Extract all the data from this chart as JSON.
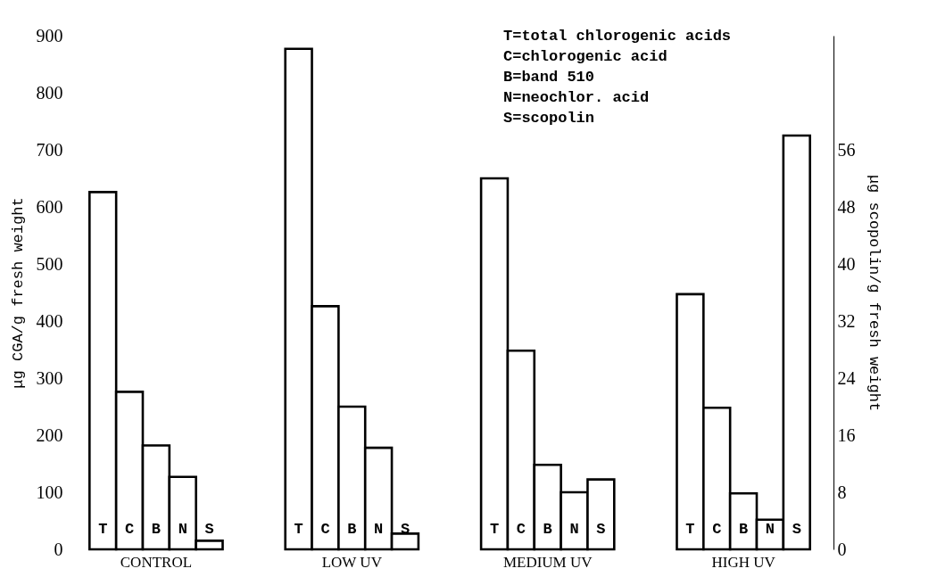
{
  "chart_data": {
    "type": "bar",
    "categories": [
      "CONTROL",
      "LOW UV",
      "MEDIUM UV",
      "HIGH UV"
    ],
    "series": [
      {
        "name": "T",
        "color": "#ffffff",
        "values": [
          626,
          877,
          650,
          447
        ]
      },
      {
        "name": "C",
        "color": "#ffffff",
        "values": [
          276,
          426,
          348,
          248
        ]
      },
      {
        "name": "B",
        "color": "#ffffff",
        "values": [
          182,
          250,
          148,
          98
        ]
      },
      {
        "name": "N",
        "color": "#ffffff",
        "values": [
          127,
          178,
          100,
          52
        ]
      },
      {
        "name": "S",
        "color": "#ffffff",
        "axis": "y2",
        "values": [
          1.2,
          2.2,
          9.8,
          58
        ]
      }
    ],
    "ylabel": "μg CGA/g fresh weight",
    "y2label": "μg scopolin/g fresh weight",
    "ylim": [
      0,
      900
    ],
    "yticks": [
      0,
      100,
      200,
      300,
      400,
      500,
      600,
      700,
      800,
      900
    ],
    "y2lim": [
      0,
      72
    ],
    "y2ticks": [
      0,
      8,
      16,
      24,
      32,
      40,
      48,
      56
    ],
    "annotations": [
      "T=total chlorogenic acids",
      "C=chlorogenic acid",
      "B=band 510",
      "N=neochlor. acid",
      "S=scopolin"
    ],
    "grid": false,
    "legend": false
  }
}
